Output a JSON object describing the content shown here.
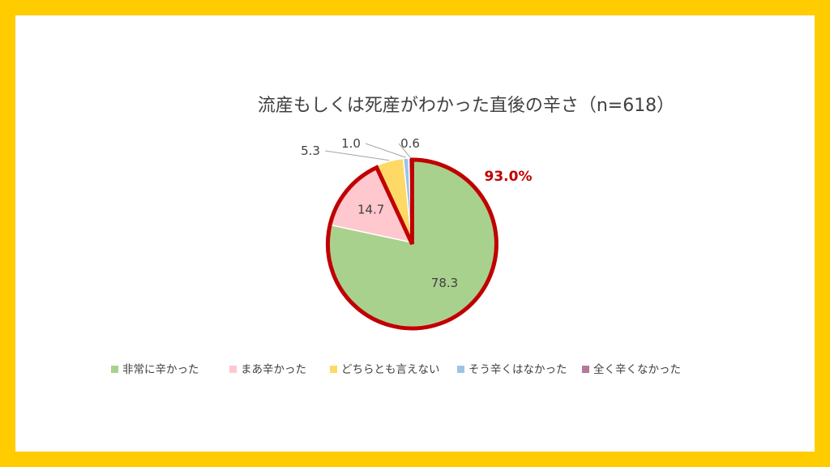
{
  "chart_data": {
    "type": "pie",
    "title": "流産もしくは死産がわかった直後の辛さ（n=618）",
    "categories": [
      "非常に辛かった",
      "まあ辛かった",
      "どちらとも言えない",
      "そう辛くはなかった",
      "全く辛くなかった"
    ],
    "values": [
      78.3,
      14.7,
      5.3,
      1.0,
      0.6
    ],
    "data_labels": [
      "78.3",
      "14.7",
      "5.3",
      "1.0",
      "0.6"
    ],
    "colors": [
      "#a9d18e",
      "#ffc7ce",
      "#ffd966",
      "#9dc3e6",
      "#b4799c"
    ],
    "legend_placement": "bottom",
    "callout": {
      "label": "93.0%",
      "highlighted_categories": [
        "非常に辛かった",
        "まあ辛かった"
      ],
      "color": "#c00000"
    }
  }
}
